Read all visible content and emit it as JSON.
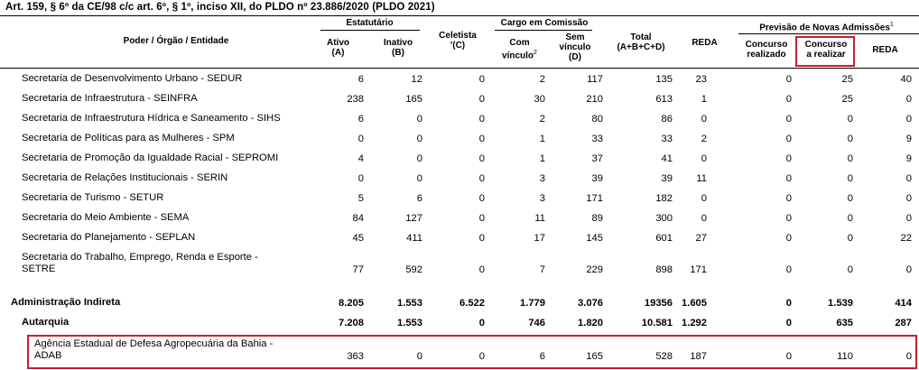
{
  "caption": "Art. 159, § 6º da CE/98 c/c art. 6º, § 1º, inciso XII, do PLDO nº 23.886/2020 (PLDO 2021)",
  "header": {
    "entity": "Poder / Órgão / Entidade",
    "estatutario": "Estatutário",
    "ativo": "Ativo",
    "ativo_code": "(A)",
    "inativo": "Inativo",
    "inativo_code": "(B)",
    "celetista": "Celetista",
    "celetista_code": "'(C)",
    "cargo": "Cargo em Comissão",
    "com_vinculo": "Com",
    "com_vinculo2": "vínculo",
    "com_vinculo_sup": "2",
    "sem_vinculo": "Sem",
    "sem_vinculo2": "vínculo",
    "sem_vinculo_code": "(D)",
    "total": "Total",
    "total_code": "(A+B+C+D)",
    "reda": "REDA",
    "previsao": "Previsão de Novas Admissões",
    "previsao_sup": "1",
    "concurso_realizado": "Concurso",
    "concurso_realizado2": "realizado",
    "concurso_realizar": "Concurso",
    "concurso_realizar2": "a realizar",
    "reda2": "REDA"
  },
  "rows": [
    {
      "label": [
        "Secretaria de Desenvolvimento Urbano - SEDUR"
      ],
      "values": [
        "6",
        "12",
        "0",
        "2",
        "117",
        "135",
        "23",
        "0",
        "25",
        "40"
      ]
    },
    {
      "label": [
        "Secretaria de Infraestrutura - SEINFRA"
      ],
      "values": [
        "238",
        "165",
        "0",
        "30",
        "210",
        "613",
        "1",
        "0",
        "25",
        "0"
      ]
    },
    {
      "label": [
        "Secretaria de Infraestrutura Hídrica e Saneamento - SIHS"
      ],
      "values": [
        "6",
        "0",
        "0",
        "2",
        "80",
        "86",
        "0",
        "0",
        "0",
        "0"
      ]
    },
    {
      "label": [
        "Secretaria de Políticas para as Mulheres - SPM"
      ],
      "values": [
        "0",
        "0",
        "0",
        "1",
        "33",
        "33",
        "2",
        "0",
        "0",
        "9"
      ]
    },
    {
      "label": [
        "Secretaria de Promoção da Igualdade Racial - SEPROMI"
      ],
      "values": [
        "4",
        "0",
        "0",
        "1",
        "37",
        "41",
        "0",
        "0",
        "0",
        "9"
      ]
    },
    {
      "label": [
        "Secretaria de Relações Institucionais - SERIN"
      ],
      "values": [
        "0",
        "0",
        "0",
        "3",
        "39",
        "39",
        "11",
        "0",
        "0",
        "0"
      ]
    },
    {
      "label": [
        "Secretaria de Turismo - SETUR"
      ],
      "values": [
        "5",
        "6",
        "0",
        "3",
        "171",
        "182",
        "0",
        "0",
        "0",
        "0"
      ]
    },
    {
      "label": [
        "Secretaria do Meio Ambiente - SEMA"
      ],
      "values": [
        "84",
        "127",
        "0",
        "11",
        "89",
        "300",
        "0",
        "0",
        "0",
        "0"
      ]
    },
    {
      "label": [
        "Secretaria do Planejamento - SEPLAN"
      ],
      "values": [
        "45",
        "411",
        "0",
        "17",
        "145",
        "601",
        "27",
        "0",
        "0",
        "22"
      ]
    },
    {
      "label": [
        "Secretaria do Trabalho, Emprego, Renda e Esporte -",
        "SETRE"
      ],
      "values": [
        "77",
        "592",
        "0",
        "7",
        "229",
        "898",
        "171",
        "0",
        "0",
        "0"
      ]
    },
    {
      "label": [
        "Administração Indireta"
      ],
      "values": [
        "8.205",
        "1.553",
        "6.522",
        "1.779",
        "3.076",
        "19356",
        "1.605",
        "0",
        "1.539",
        "414"
      ]
    },
    {
      "label": [
        "Autarquia"
      ],
      "values": [
        "7.208",
        "1.553",
        "0",
        "746",
        "1.820",
        "10.581",
        "1.292",
        "0",
        "635",
        "287"
      ]
    },
    {
      "label": [
        "Agência Estadual de Defesa Agropecuária da Bahia -",
        "ADAB"
      ],
      "values": [
        "363",
        "0",
        "0",
        "6",
        "165",
        "528",
        "187",
        "0",
        "110",
        "0"
      ]
    }
  ]
}
